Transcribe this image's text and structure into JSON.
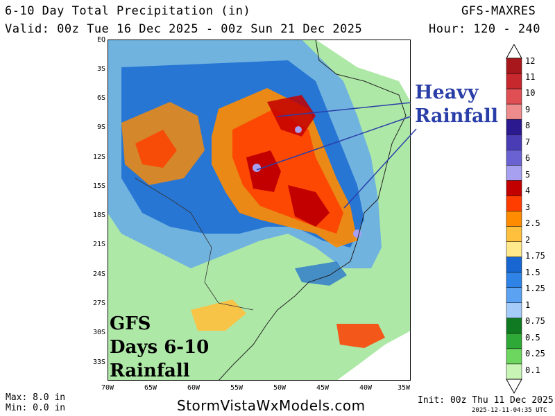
{
  "header": {
    "title": "6-10 Day Total Precipitation (in)",
    "model": "GFS-MAXRES",
    "valid": "Valid: 00z Tue 16 Dec 2025 - 00z Sun 21 Dec 2025",
    "hours": "Hour: 120 - 240"
  },
  "map": {
    "lat_labels": [
      "EQ",
      "3S",
      "6S",
      "9S",
      "12S",
      "15S",
      "18S",
      "21S",
      "24S",
      "27S",
      "30S",
      "33S"
    ],
    "lon_labels": [
      "70W",
      "65W",
      "60W",
      "55W",
      "50W",
      "45W",
      "40W",
      "35W"
    ]
  },
  "annotations": {
    "heavy_line1": "Heavy",
    "heavy_line2": "Rainfall",
    "gfs_line1": "GFS",
    "gfs_line2": "Days 6-10",
    "gfs_line3": "Rainfall"
  },
  "legend": {
    "labels": [
      "12",
      "11",
      "10",
      "9",
      "8",
      "7",
      "6",
      "5",
      "4",
      "3",
      "2.5",
      "2",
      "1.75",
      "1.5",
      "1.25",
      "1",
      "0.75",
      "0.5",
      "0.25",
      "0.1"
    ],
    "colors": [
      "#a8171b",
      "#c6282d",
      "#e04f54",
      "#ee8b8d",
      "#2b1a8f",
      "#4a3cb4",
      "#6a62d2",
      "#a79ff0",
      "#c30000",
      "#ff3d00",
      "#ff8c00",
      "#ffc03d",
      "#ffe98a",
      "#1766d1",
      "#2f82e6",
      "#5ba2f2",
      "#a5ccf8",
      "#0f7a21",
      "#2ea836",
      "#6cd65f",
      "#c8f5b5"
    ]
  },
  "footer": {
    "max": "Max: 8.0 in",
    "min": "Min: 0.0 in",
    "site": "StormVistaWxModels.com",
    "init": "Init: 00z Thu 11 Dec 2025",
    "stamp": "2025-12-11-04:35 UTC"
  }
}
